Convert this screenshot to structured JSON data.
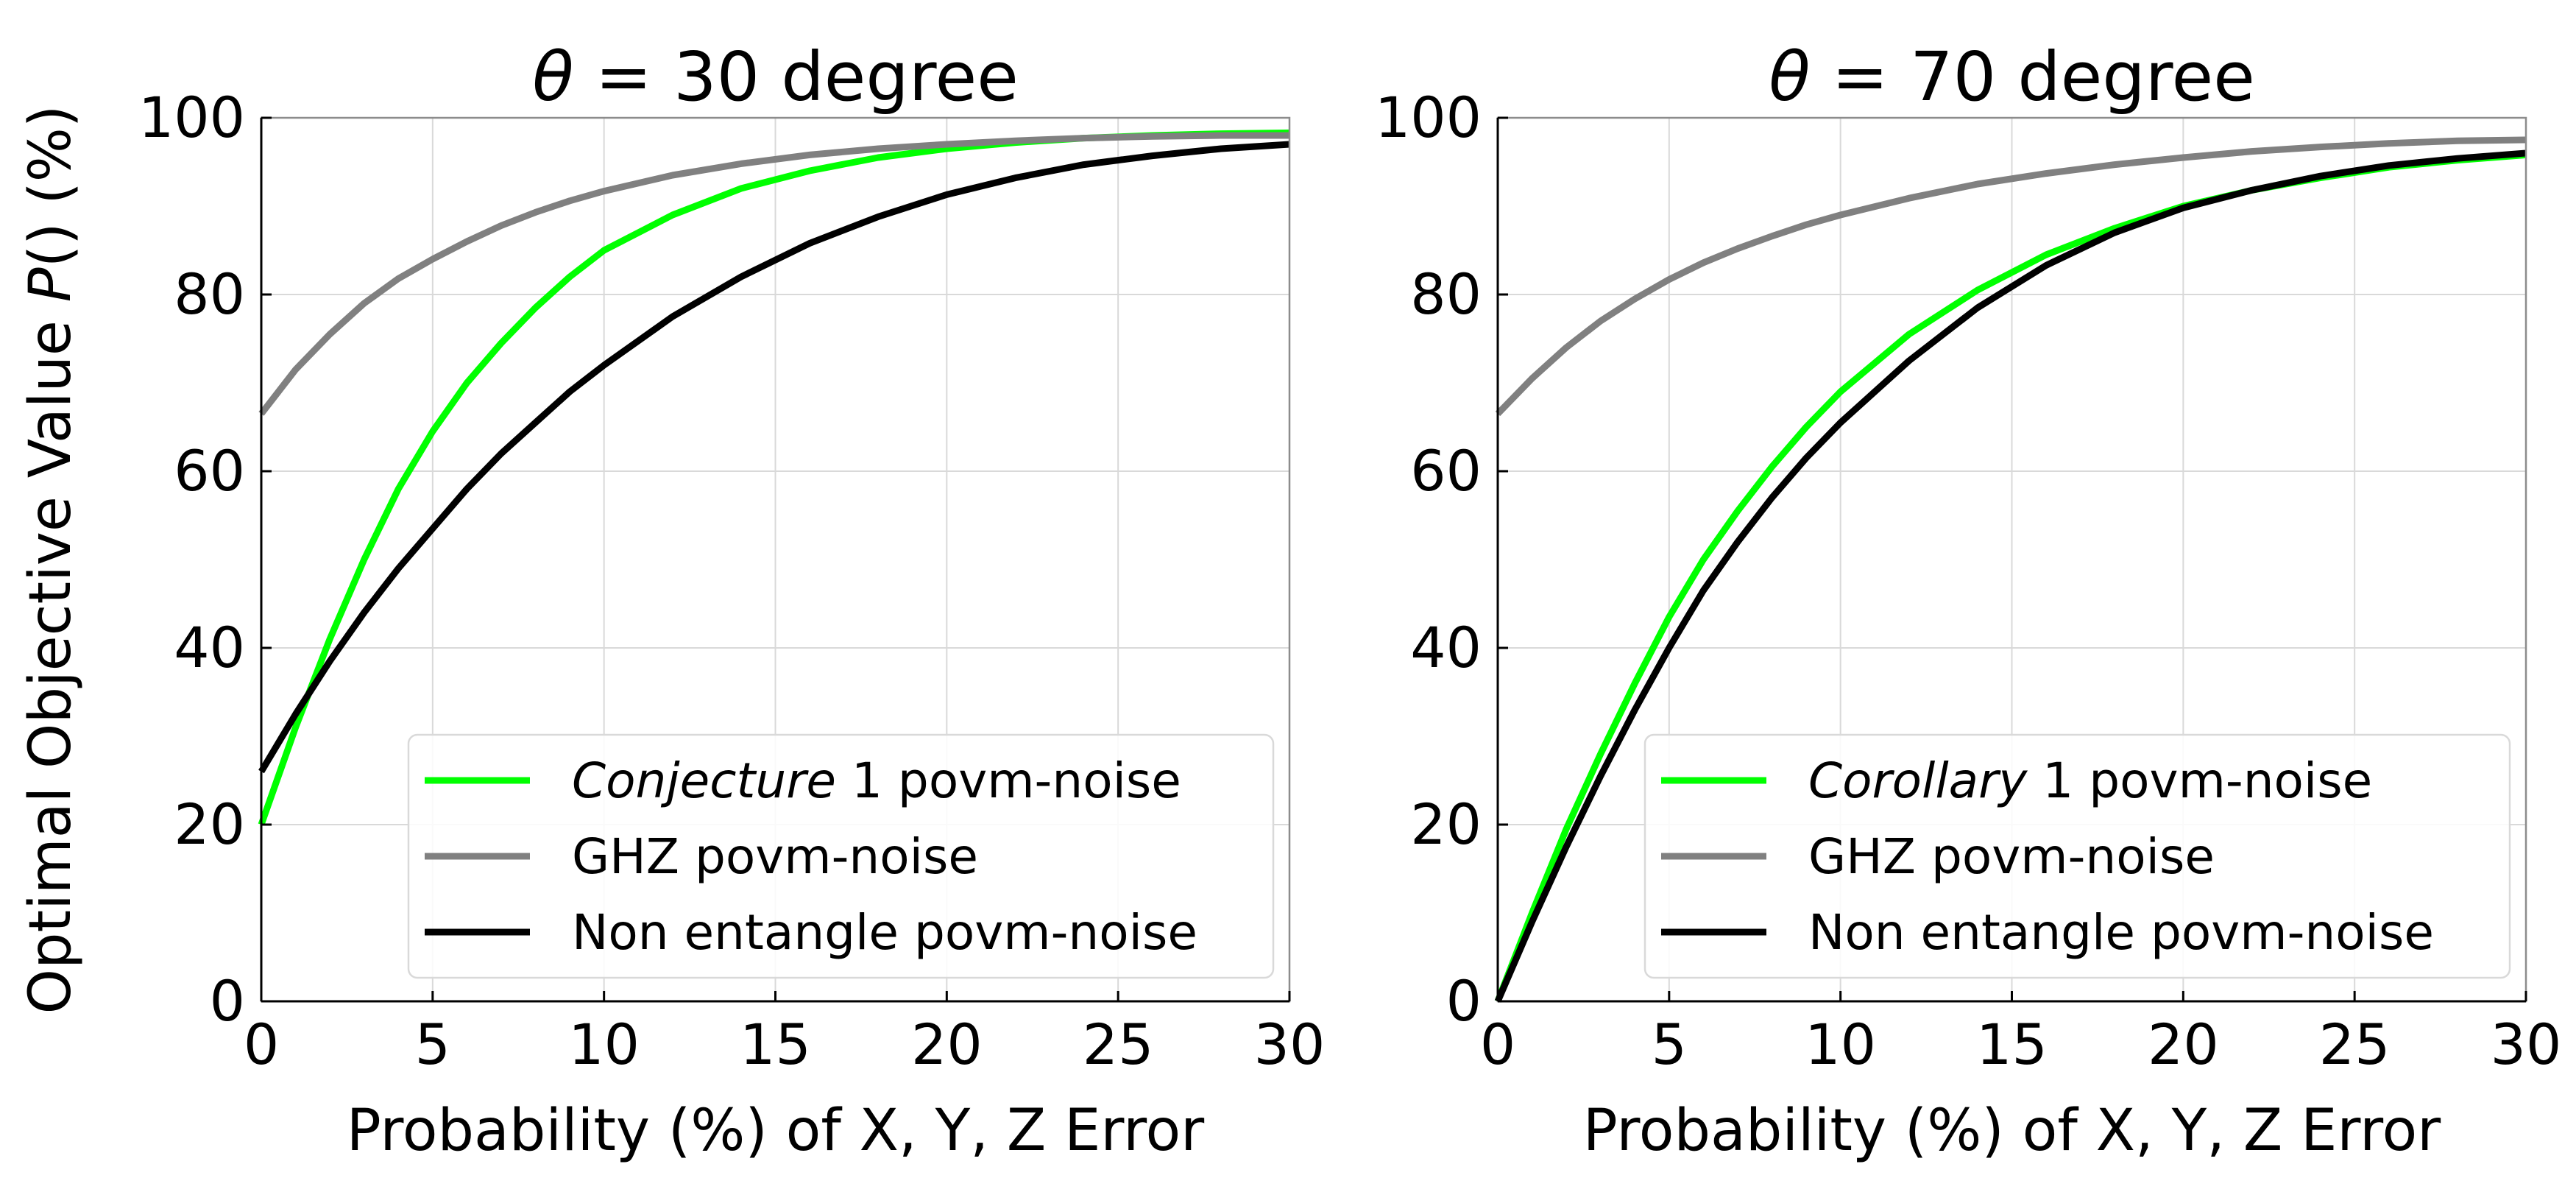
{
  "figure": {
    "ylabel_prefix": "Optimal Objective Value ",
    "ylabel_italic": "P",
    "ylabel_suffix": "() (%)"
  },
  "chart_data": [
    {
      "type": "line",
      "title_symbol": "θ",
      "title_rest": " = 30 degree",
      "xlabel": "Probability (%) of X, Y, Z Error",
      "ylabel": "Optimal Objective Value P() (%)",
      "xlim": [
        0,
        30
      ],
      "ylim": [
        0,
        100
      ],
      "xticks": [
        "0",
        "5",
        "10",
        "15",
        "20",
        "25",
        "30"
      ],
      "yticks": [
        "0",
        "20",
        "40",
        "60",
        "80",
        "100"
      ],
      "grid": true,
      "legend_position": "lower-right",
      "series": [
        {
          "name": "Conjecture 1 povm-noise",
          "name_italic": "Conjecture",
          "name_rest": " 1 povm-noise",
          "color": "#00ff00",
          "x": [
            0,
            1,
            2,
            3,
            4,
            5,
            6,
            7,
            8,
            9,
            10,
            12,
            14,
            16,
            18,
            20,
            22,
            24,
            26,
            28,
            30
          ],
          "y": [
            20,
            31,
            41,
            50,
            58,
            64.5,
            70,
            74.5,
            78.5,
            82,
            85,
            89,
            92,
            94,
            95.5,
            96.5,
            97.2,
            97.7,
            98,
            98.2,
            98.3
          ]
        },
        {
          "name": "GHZ povm-noise",
          "color": "#808080",
          "x": [
            0,
            1,
            2,
            3,
            4,
            5,
            6,
            7,
            8,
            9,
            10,
            12,
            14,
            16,
            18,
            20,
            22,
            24,
            26,
            28,
            30
          ],
          "y": [
            66.5,
            71.5,
            75.5,
            79,
            81.8,
            84,
            86,
            87.8,
            89.3,
            90.6,
            91.7,
            93.5,
            94.8,
            95.8,
            96.5,
            97,
            97.4,
            97.7,
            97.9,
            98,
            98
          ]
        },
        {
          "name": "Non entangle povm-noise",
          "color": "#000000",
          "x": [
            0,
            1,
            2,
            3,
            4,
            5,
            6,
            7,
            8,
            9,
            10,
            12,
            14,
            16,
            18,
            20,
            22,
            24,
            26,
            28,
            30
          ],
          "y": [
            26,
            32.5,
            38.5,
            44,
            49,
            53.5,
            58,
            62,
            65.5,
            69,
            72,
            77.5,
            82,
            85.8,
            88.8,
            91.3,
            93.2,
            94.7,
            95.7,
            96.5,
            97
          ]
        }
      ]
    },
    {
      "type": "line",
      "title_symbol": "θ",
      "title_rest": " = 70 degree",
      "xlabel": "Probability (%) of X, Y, Z Error",
      "xlim": [
        0,
        30
      ],
      "ylim": [
        0,
        100
      ],
      "xticks": [
        "0",
        "5",
        "10",
        "15",
        "20",
        "25",
        "30"
      ],
      "yticks": [
        "0",
        "20",
        "40",
        "60",
        "80",
        "100"
      ],
      "grid": true,
      "legend_position": "lower-right",
      "series": [
        {
          "name": "Corollary 1 povm-noise",
          "name_italic": "Corollary",
          "name_rest": " 1 povm-noise",
          "color": "#00ff00",
          "x": [
            0,
            1,
            2,
            3,
            4,
            5,
            6,
            7,
            8,
            9,
            10,
            12,
            14,
            16,
            18,
            20,
            22,
            24,
            26,
            28,
            30
          ],
          "y": [
            0,
            10,
            19.5,
            28,
            36,
            43.5,
            50,
            55.5,
            60.5,
            65,
            69,
            75.5,
            80.5,
            84.5,
            87.5,
            90,
            91.8,
            93.2,
            94.4,
            95.2,
            95.8
          ]
        },
        {
          "name": "GHZ povm-noise",
          "color": "#808080",
          "x": [
            0,
            1,
            2,
            3,
            4,
            5,
            6,
            7,
            8,
            9,
            10,
            12,
            14,
            16,
            18,
            20,
            22,
            24,
            26,
            28,
            30
          ],
          "y": [
            66.5,
            70.5,
            74,
            77,
            79.5,
            81.7,
            83.6,
            85.2,
            86.6,
            87.9,
            89,
            90.9,
            92.5,
            93.7,
            94.7,
            95.5,
            96.2,
            96.7,
            97.1,
            97.4,
            97.5
          ]
        },
        {
          "name": "Non entangle povm-noise",
          "color": "#000000",
          "x": [
            0,
            1,
            2,
            3,
            4,
            5,
            6,
            7,
            8,
            9,
            10,
            12,
            14,
            16,
            18,
            20,
            22,
            24,
            26,
            28,
            30
          ],
          "y": [
            0,
            9,
            17.5,
            25.5,
            33,
            40,
            46.5,
            52,
            57,
            61.5,
            65.5,
            72.5,
            78.5,
            83.3,
            87,
            89.8,
            91.8,
            93.4,
            94.6,
            95.4,
            96
          ]
        }
      ]
    }
  ]
}
